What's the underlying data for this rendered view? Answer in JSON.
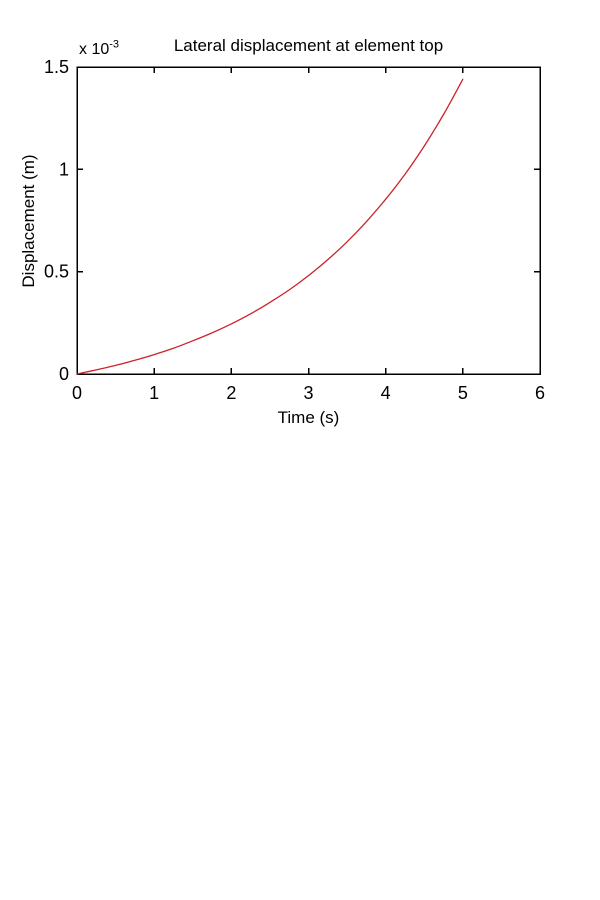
{
  "page": {
    "background_color": "#ffffff"
  },
  "chart_data": {
    "type": "line",
    "title": "Lateral displacement at element top",
    "xlabel": "Time (s)",
    "ylabel": "Displacement (m)",
    "y_multiplier": {
      "base": "x 10",
      "exponent": "-3"
    },
    "xlim": [
      0,
      6
    ],
    "ylim": [
      0,
      1.5
    ],
    "xticks": [
      0,
      1,
      2,
      3,
      4,
      5,
      6
    ],
    "yticks": [
      0,
      0.5,
      1,
      1.5
    ],
    "grid": false,
    "legend": null,
    "box": true,
    "axis_color": "#000000",
    "line_color": "#cc2229",
    "series": [
      {
        "x": [
          0,
          0.25,
          0.5,
          0.75,
          1.0,
          1.25,
          1.5,
          1.75,
          2.0,
          2.25,
          2.5,
          2.75,
          3.0,
          3.25,
          3.5,
          3.75,
          4.0,
          4.25,
          4.5,
          4.75,
          5.0
        ],
        "y": [
          0,
          0.02,
          0.042,
          0.067,
          0.095,
          0.126,
          0.162,
          0.201,
          0.245,
          0.294,
          0.35,
          0.411,
          0.481,
          0.559,
          0.646,
          0.744,
          0.854,
          0.976,
          1.114,
          1.268,
          1.44
        ]
      }
    ]
  }
}
